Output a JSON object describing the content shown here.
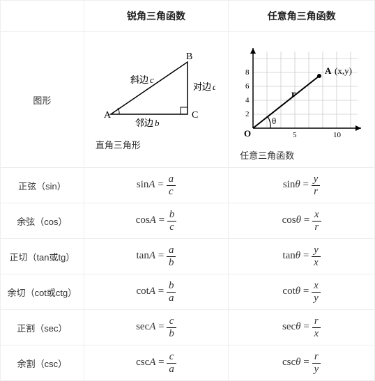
{
  "headers": {
    "blank": "",
    "col1": "锐角三角函数",
    "col2": "任意角三角函数"
  },
  "figure_row_label": "图形",
  "triangle": {
    "caption": "直角三角形",
    "A": "A",
    "B": "B",
    "C": "C",
    "hyp": "斜边",
    "hyp_var": "c",
    "opp": "对边",
    "opp_var": "a",
    "adj": "邻边",
    "adj_var": "b"
  },
  "coord": {
    "caption": "任意三角函数",
    "O": "O",
    "A": "A",
    "Axy": "(x,y)",
    "r": "r",
    "theta": "θ",
    "xticks": [
      "5",
      "10"
    ],
    "yticks": [
      "2",
      "4",
      "6",
      "8"
    ]
  },
  "rows": [
    {
      "label": "正弦（sin）",
      "lhs1": "sin",
      "v1": "A",
      "n1": "a",
      "d1": "c",
      "lhs2": "sin",
      "v2": "θ",
      "n2": "y",
      "d2": "r"
    },
    {
      "label": "余弦（cos）",
      "lhs1": "cos",
      "v1": "A",
      "n1": "b",
      "d1": "c",
      "lhs2": "cos",
      "v2": "θ",
      "n2": "x",
      "d2": "r"
    },
    {
      "label": "正切（tan或tg）",
      "lhs1": "tan",
      "v1": "A",
      "n1": "a",
      "d1": "b",
      "lhs2": "tan",
      "v2": "θ",
      "n2": "y",
      "d2": "x"
    },
    {
      "label": "余切（cot或ctg）",
      "lhs1": "cot",
      "v1": "A",
      "n1": "b",
      "d1": "a",
      "lhs2": "cot",
      "v2": "θ",
      "n2": "x",
      "d2": "y"
    },
    {
      "label": "正割（sec）",
      "lhs1": "sec",
      "v1": "A",
      "n1": "c",
      "d1": "b",
      "lhs2": "sec",
      "v2": "θ",
      "n2": "r",
      "d2": "x"
    },
    {
      "label": "余割（csc）",
      "lhs1": "csc",
      "v1": "A",
      "n1": "c",
      "d1": "a",
      "lhs2": "csc",
      "v2": "θ",
      "n2": "r",
      "d2": "y"
    }
  ]
}
